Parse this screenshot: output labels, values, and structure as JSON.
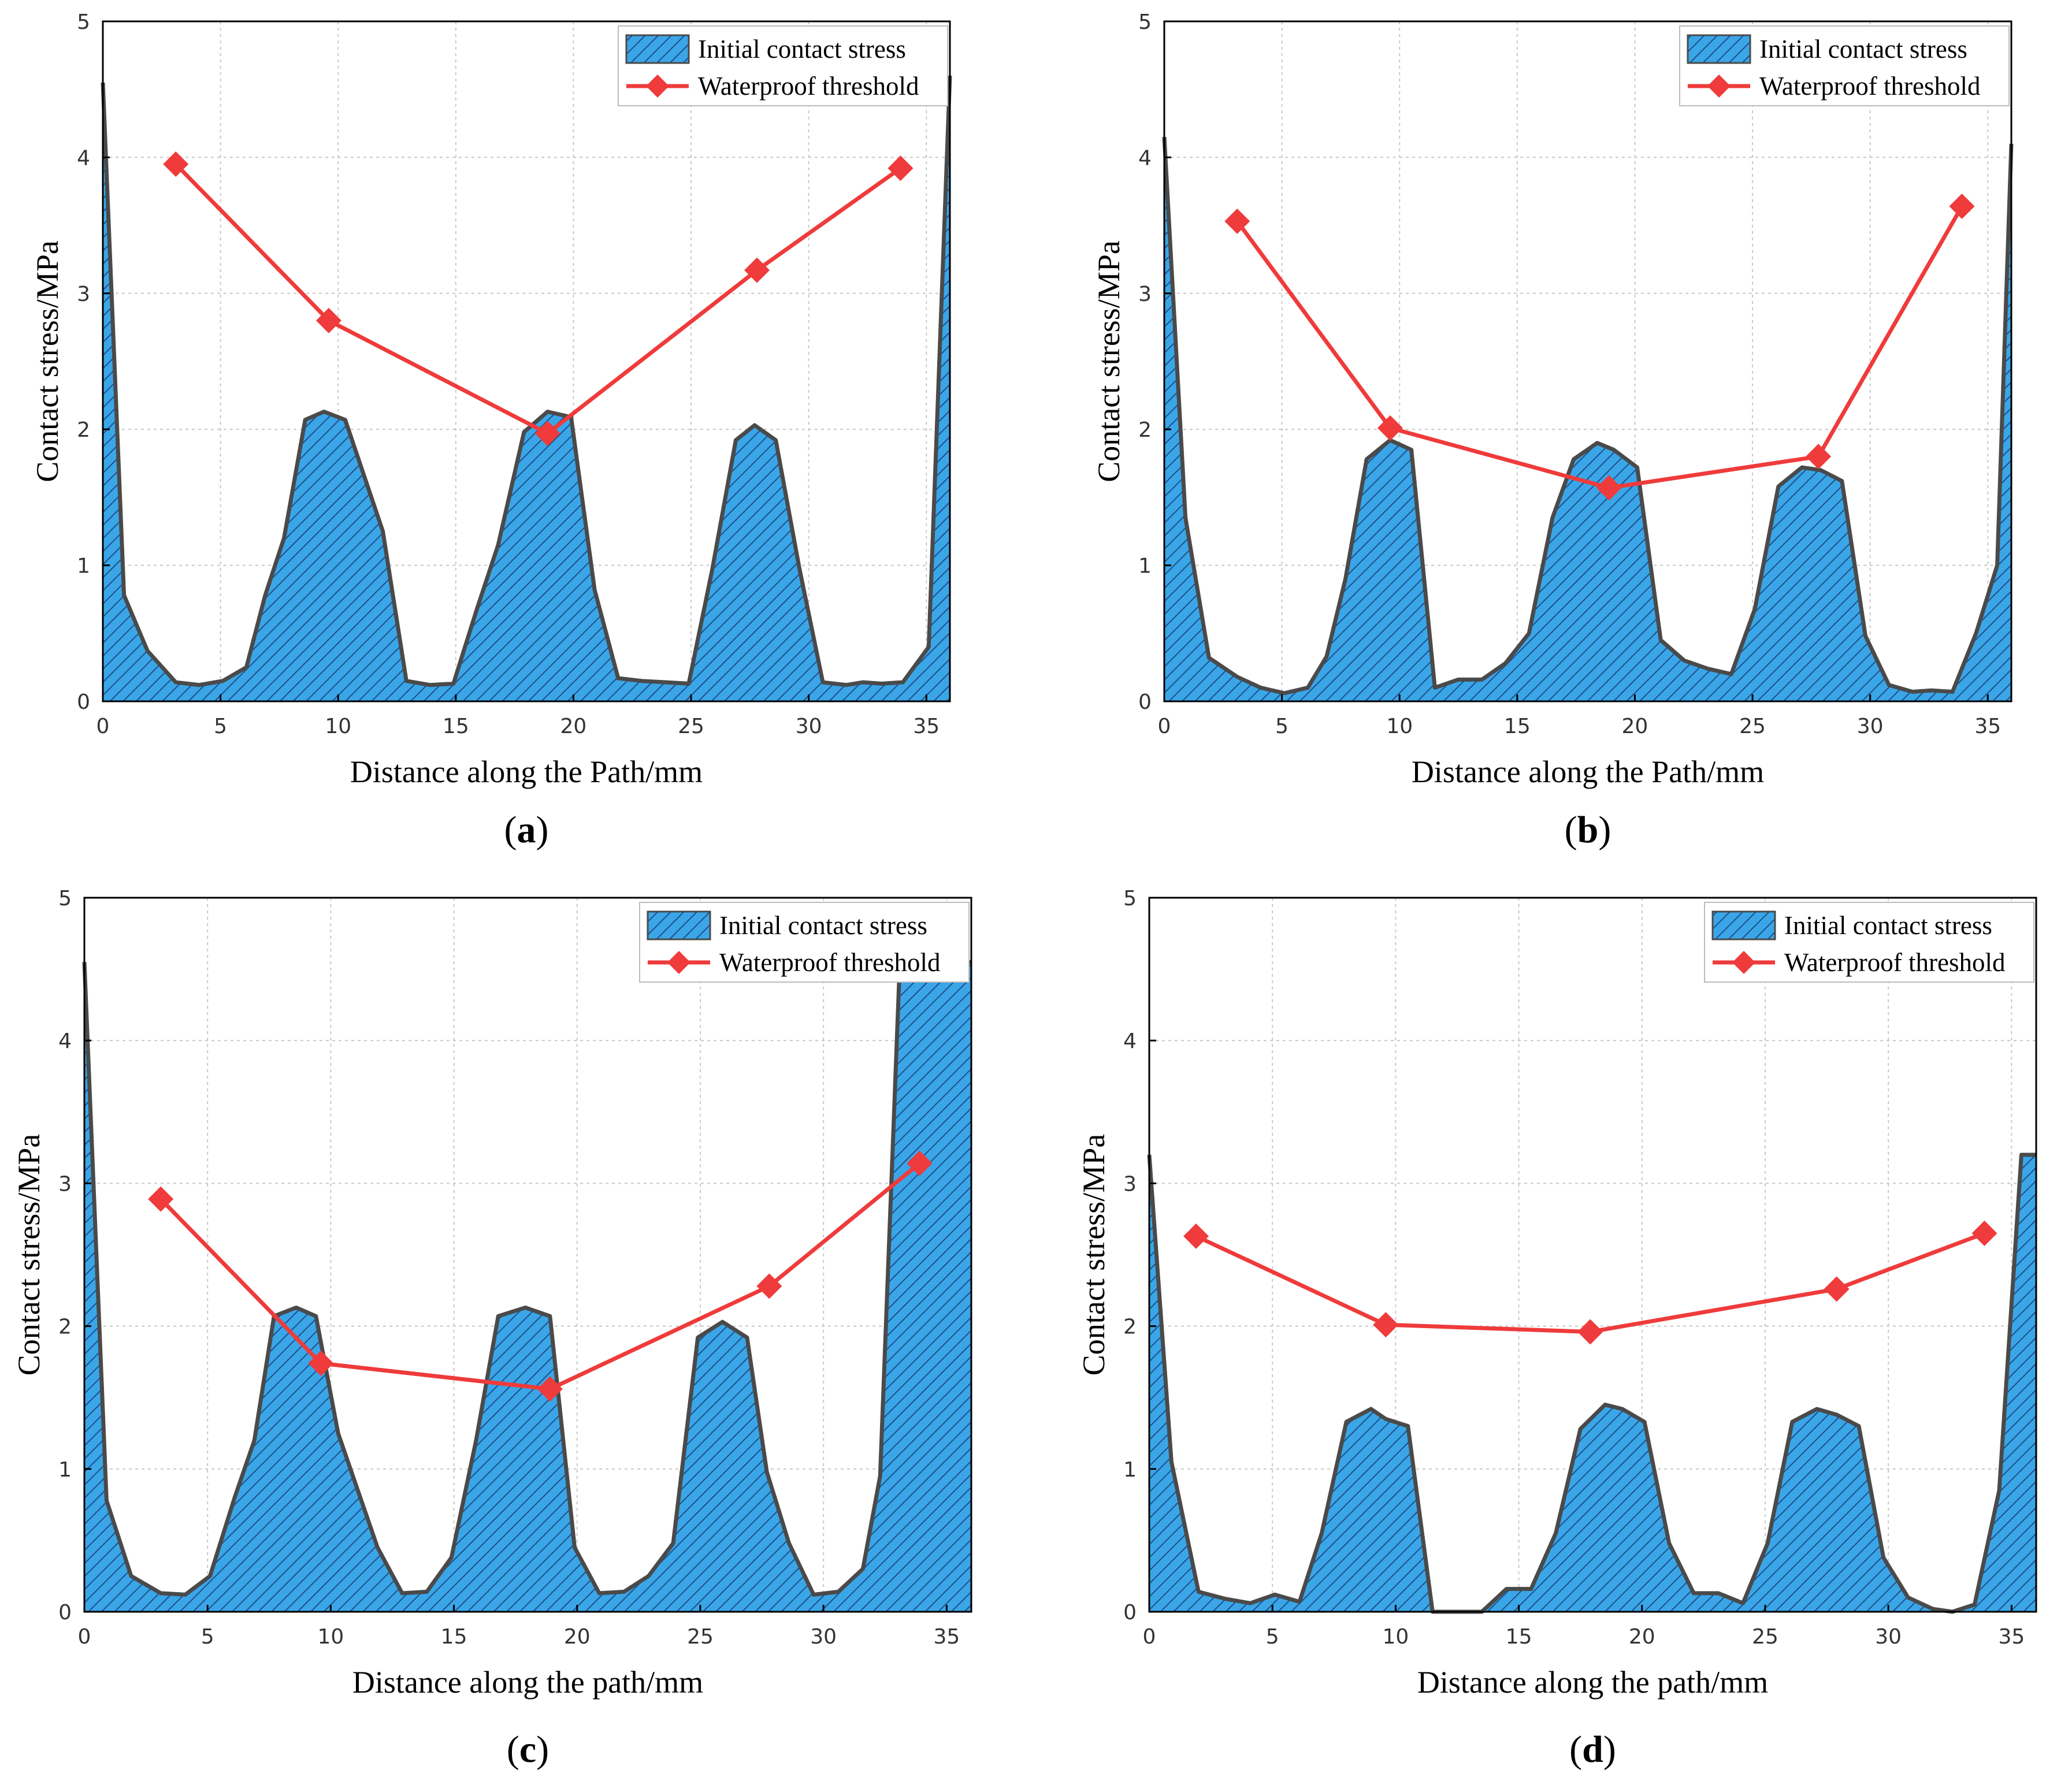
{
  "figure": {
    "colors": {
      "area_fill": "#3aa6e8",
      "area_edge": "#4a4a4a",
      "hatch": "#1f4f8a",
      "threshold": "#ef3b3b",
      "grid": "#c8c8c8"
    }
  },
  "chart_data": [
    {
      "type": "area",
      "panel_label": "a",
      "title": "",
      "xlabel": "Distance along the Path/mm",
      "ylabel": "Contact stress/MPa",
      "xlim": [
        0,
        36
      ],
      "ylim": [
        0,
        5
      ],
      "x_ticks": [
        0,
        5,
        10,
        15,
        20,
        25,
        30,
        35
      ],
      "y_ticks": [
        0,
        1,
        2,
        3,
        4,
        5
      ],
      "grid": true,
      "legend": {
        "position": "top-right",
        "entries": [
          "Initial contact stress",
          "Waterproof threshold"
        ]
      },
      "series": [
        {
          "name": "Initial contact stress",
          "kind": "area",
          "x": [
            0,
            0.9,
            1.9,
            3.1,
            4.1,
            5.1,
            6.1,
            6.9,
            7.7,
            8.6,
            9.4,
            10.3,
            11.9,
            12.9,
            13.9,
            14.9,
            15.9,
            16.8,
            17.9,
            18.9,
            19.9,
            20.9,
            21.9,
            22.9,
            23.9,
            24.9,
            25.9,
            26.9,
            27.7,
            28.6,
            29.6,
            30.6,
            31.6,
            32.3,
            33.1,
            34.0,
            35.1,
            36.0
          ],
          "y": [
            4.55,
            0.78,
            0.37,
            0.14,
            0.12,
            0.15,
            0.25,
            0.78,
            1.2,
            2.07,
            2.13,
            2.07,
            1.25,
            0.15,
            0.12,
            0.13,
            0.68,
            1.15,
            1.98,
            2.13,
            2.09,
            0.82,
            0.17,
            0.15,
            0.14,
            0.13,
            0.97,
            1.92,
            2.03,
            1.92,
            0.98,
            0.14,
            0.12,
            0.14,
            0.13,
            0.14,
            0.4,
            4.6
          ]
        },
        {
          "name": "Waterproof threshold",
          "kind": "line-diamond",
          "x": [
            3.1,
            9.6,
            18.9,
            27.8,
            33.9
          ],
          "y": [
            3.95,
            2.8,
            1.97,
            3.17,
            3.92
          ]
        }
      ]
    },
    {
      "type": "area",
      "panel_label": "b",
      "title": "",
      "xlabel": "Distance along the Path/mm",
      "ylabel": "Contact stress/MPa",
      "xlim": [
        0,
        36
      ],
      "ylim": [
        0,
        5
      ],
      "x_ticks": [
        0,
        5,
        10,
        15,
        20,
        25,
        30,
        35
      ],
      "y_ticks": [
        0,
        1,
        2,
        3,
        4,
        5
      ],
      "grid": true,
      "legend": {
        "position": "top-right",
        "entries": [
          "Initial contact stress",
          "Waterproof threshold"
        ]
      },
      "series": [
        {
          "name": "Initial contact stress",
          "kind": "area",
          "x": [
            0,
            0.9,
            1.9,
            3.1,
            4.1,
            5.1,
            6.1,
            6.9,
            7.7,
            8.6,
            9.6,
            10.5,
            11.5,
            12.5,
            13.5,
            14.5,
            15.5,
            16.5,
            17.4,
            18.4,
            19.1,
            20.1,
            21.1,
            22.1,
            23.1,
            24.1,
            25.1,
            26.1,
            27.1,
            27.9,
            28.8,
            29.8,
            30.8,
            31.8,
            32.6,
            33.5,
            34.5,
            35.4,
            36.0
          ],
          "y": [
            4.15,
            1.35,
            0.32,
            0.18,
            0.1,
            0.06,
            0.1,
            0.33,
            0.9,
            1.78,
            1.92,
            1.85,
            0.1,
            0.16,
            0.16,
            0.28,
            0.5,
            1.35,
            1.78,
            1.9,
            1.85,
            1.72,
            0.45,
            0.3,
            0.24,
            0.2,
            0.68,
            1.58,
            1.72,
            1.7,
            1.62,
            0.48,
            0.12,
            0.07,
            0.08,
            0.07,
            0.5,
            1.0,
            4.1
          ]
        },
        {
          "name": "Waterproof threshold",
          "kind": "line-diamond",
          "x": [
            3.1,
            9.6,
            18.9,
            27.8,
            33.9
          ],
          "y": [
            3.53,
            2.01,
            1.57,
            1.8,
            3.64
          ]
        }
      ]
    },
    {
      "type": "area",
      "panel_label": "c",
      "title": "",
      "xlabel": "Distance along the path/mm",
      "ylabel": "Contact stress/MPa",
      "xlim": [
        0,
        36
      ],
      "ylim": [
        0,
        5
      ],
      "x_ticks": [
        0,
        5,
        10,
        15,
        20,
        25,
        30,
        35
      ],
      "y_ticks": [
        0,
        1,
        2,
        3,
        4,
        5
      ],
      "grid": true,
      "legend": {
        "position": "top-right",
        "entries": [
          "Initial contact stress",
          "Waterproof threshold"
        ]
      },
      "series": [
        {
          "name": "Initial contact stress",
          "kind": "area",
          "x": [
            0,
            0.9,
            1.9,
            3.1,
            4.1,
            5.1,
            6.1,
            6.9,
            7.7,
            8.6,
            9.4,
            10.3,
            11.9,
            12.9,
            13.9,
            14.9,
            15.9,
            16.8,
            17.9,
            18.9,
            19.9,
            20.9,
            21.9,
            22.9,
            23.9,
            24.9,
            25.9,
            26.9,
            27.7,
            28.6,
            29.6,
            30.6,
            31.6,
            32.3,
            33.1,
            34.0,
            35.1,
            36.0
          ],
          "y": [
            4.55,
            0.78,
            0.25,
            0.13,
            0.12,
            0.25,
            0.8,
            1.2,
            2.07,
            2.13,
            2.07,
            1.25,
            0.45,
            0.13,
            0.14,
            0.38,
            1.2,
            2.07,
            2.13,
            2.07,
            0.45,
            0.13,
            0.14,
            0.25,
            0.48,
            1.92,
            2.03,
            1.92,
            0.98,
            0.48,
            0.12,
            0.14,
            0.3,
            0.95,
            4.55,
            4.55,
            4.55,
            4.55
          ]
        },
        {
          "name": "Waterproof threshold",
          "kind": "line-diamond",
          "x": [
            3.1,
            9.6,
            18.9,
            27.8,
            33.9
          ],
          "y": [
            2.89,
            1.74,
            1.56,
            2.28,
            3.14
          ]
        }
      ]
    },
    {
      "type": "area",
      "panel_label": "d",
      "title": "",
      "xlabel": "Distance along the path/mm",
      "ylabel": "Contact stress/MPa",
      "xlim": [
        0,
        36
      ],
      "ylim": [
        0,
        5
      ],
      "x_ticks": [
        0,
        5,
        10,
        15,
        20,
        25,
        30,
        35
      ],
      "y_ticks": [
        0,
        1,
        2,
        3,
        4,
        5
      ],
      "grid": true,
      "legend": {
        "position": "top-right",
        "entries": [
          "Initial contact stress",
          "Waterproof threshold"
        ]
      },
      "series": [
        {
          "name": "Initial contact stress",
          "kind": "area",
          "x": [
            0,
            0.9,
            2.0,
            3.1,
            4.1,
            5.1,
            6.1,
            7.0,
            8.0,
            9.0,
            9.6,
            10.5,
            11.5,
            12.5,
            13.5,
            14.5,
            15.5,
            16.5,
            17.5,
            18.5,
            19.2,
            20.1,
            21.1,
            22.1,
            23.1,
            24.1,
            25.1,
            26.1,
            27.1,
            27.9,
            28.8,
            29.8,
            30.8,
            31.8,
            32.6,
            33.5,
            34.5,
            35.4,
            36.0
          ],
          "y": [
            3.2,
            1.05,
            0.14,
            0.09,
            0.06,
            0.12,
            0.07,
            0.55,
            1.33,
            1.42,
            1.35,
            1.3,
            0.0,
            0.0,
            0.0,
            0.16,
            0.16,
            0.55,
            1.28,
            1.45,
            1.42,
            1.33,
            0.48,
            0.13,
            0.13,
            0.06,
            0.48,
            1.33,
            1.42,
            1.38,
            1.3,
            0.38,
            0.1,
            0.02,
            0.0,
            0.05,
            0.85,
            3.2,
            3.2
          ]
        },
        {
          "name": "Waterproof threshold",
          "kind": "line-diamond",
          "x": [
            1.9,
            9.6,
            17.9,
            27.9,
            33.9
          ],
          "y": [
            2.63,
            2.01,
            1.96,
            2.26,
            2.65
          ]
        }
      ]
    }
  ]
}
